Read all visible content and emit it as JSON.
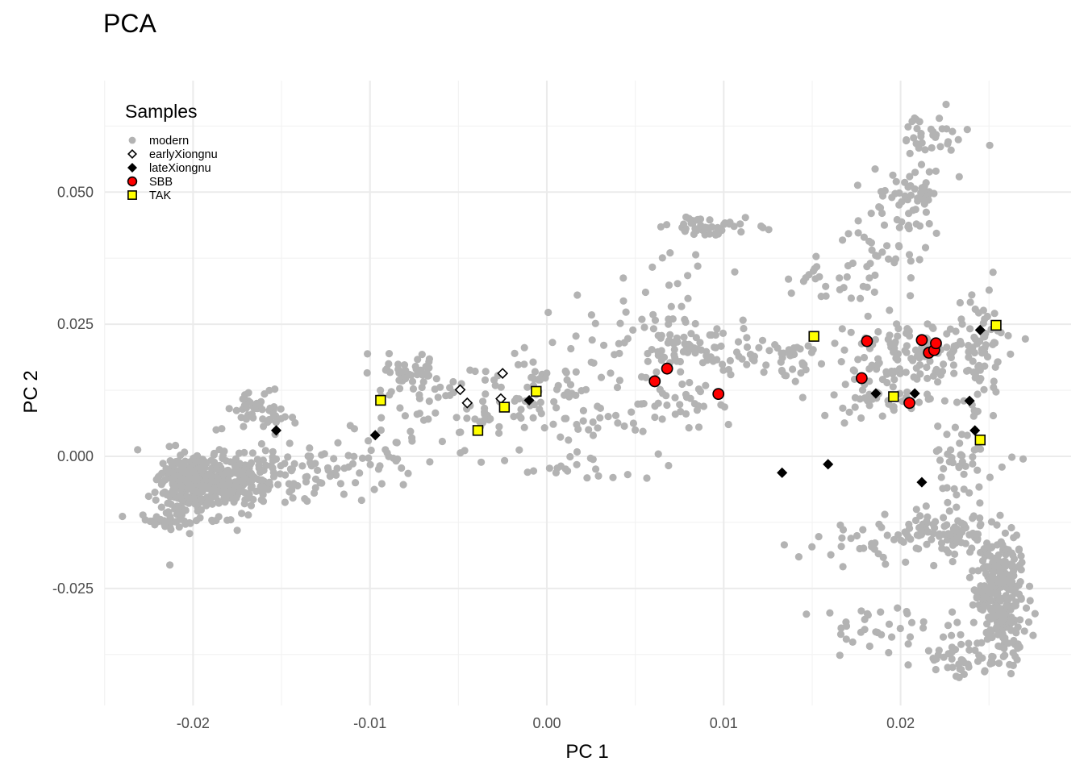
{
  "chart_data": {
    "type": "scatter",
    "title": "PCA",
    "xlabel": "PC 1",
    "ylabel": "PC 2",
    "xlim": [
      -0.025,
      0.0295
    ],
    "ylim": [
      -0.0475,
      0.0715
    ],
    "x_ticks": [
      -0.02,
      -0.01,
      0.0,
      0.01,
      0.02
    ],
    "x_tick_labels": [
      "-0.02",
      "-0.01",
      "0.00",
      "0.01",
      "0.02"
    ],
    "y_ticks": [
      0.05,
      0.025,
      0.0,
      -0.025
    ],
    "y_tick_labels": [
      "0.050",
      "0.025",
      "0.000",
      "-0.025"
    ],
    "grid": true,
    "legend": {
      "title": "Samples",
      "position": "top-left-inside",
      "entries": [
        {
          "label": "modern",
          "shape": "circle",
          "fill": "#b3b3b3",
          "stroke": "none"
        },
        {
          "label": "earlyXiongnu",
          "shape": "diamond",
          "fill": "#ffffff",
          "stroke": "#000000"
        },
        {
          "label": "lateXiongnu",
          "shape": "diamond",
          "fill": "#000000",
          "stroke": "#000000"
        },
        {
          "label": "SBB",
          "shape": "circle",
          "fill": "#ff0000",
          "stroke": "#000000"
        },
        {
          "label": "TAK",
          "shape": "square",
          "fill": "#ffff00",
          "stroke": "#000000"
        }
      ]
    },
    "modern_clusters": [
      {
        "cx": -0.0202,
        "cy": -0.0055,
        "sx": 0.0009,
        "sy": 0.0032,
        "n": 280
      },
      {
        "cx": -0.0172,
        "cy": -0.0045,
        "sx": 0.0014,
        "sy": 0.0028,
        "n": 180
      },
      {
        "cx": -0.0162,
        "cy": 0.0085,
        "sx": 0.0011,
        "sy": 0.0022,
        "n": 45
      },
      {
        "cx": -0.0212,
        "cy": -0.0122,
        "sx": 0.0008,
        "sy": 0.0008,
        "n": 25
      },
      {
        "cx": -0.0125,
        "cy": -0.003,
        "sx": 0.0018,
        "sy": 0.0028,
        "n": 45
      },
      {
        "cx": -0.0095,
        "cy": 0.0015,
        "sx": 0.0012,
        "sy": 0.0025,
        "n": 25
      },
      {
        "cx": -0.0075,
        "cy": 0.0155,
        "sx": 0.0014,
        "sy": 0.0022,
        "n": 45
      },
      {
        "cx": -0.0045,
        "cy": 0.0095,
        "sx": 0.0022,
        "sy": 0.0045,
        "n": 55
      },
      {
        "cx": -0.0005,
        "cy": 0.0135,
        "sx": 0.0018,
        "sy": 0.0035,
        "n": 45
      },
      {
        "cx": 0.002,
        "cy": 0.0075,
        "sx": 0.0028,
        "sy": 0.0045,
        "n": 50
      },
      {
        "cx": 0.002,
        "cy": -0.002,
        "sx": 0.0022,
        "sy": 0.0012,
        "n": 18
      },
      {
        "cx": 0.0045,
        "cy": 0.024,
        "sx": 0.0022,
        "sy": 0.0045,
        "n": 30
      },
      {
        "cx": 0.0075,
        "cy": 0.0205,
        "sx": 0.0011,
        "sy": 0.0025,
        "n": 55
      },
      {
        "cx": 0.0075,
        "cy": 0.0095,
        "sx": 0.0018,
        "sy": 0.0028,
        "n": 30
      },
      {
        "cx": 0.0095,
        "cy": 0.0435,
        "sx": 0.0013,
        "sy": 0.0008,
        "n": 45
      },
      {
        "cx": 0.0065,
        "cy": 0.036,
        "sx": 0.002,
        "sy": 0.0035,
        "n": 10
      },
      {
        "cx": 0.012,
        "cy": 0.0185,
        "sx": 0.0022,
        "sy": 0.0022,
        "n": 60
      },
      {
        "cx": 0.0165,
        "cy": 0.0325,
        "sx": 0.0018,
        "sy": 0.0032,
        "n": 30
      },
      {
        "cx": 0.0205,
        "cy": 0.0205,
        "sx": 0.0022,
        "sy": 0.0028,
        "n": 110
      },
      {
        "cx": 0.0195,
        "cy": 0.0115,
        "sx": 0.0018,
        "sy": 0.0022,
        "n": 60
      },
      {
        "cx": 0.0205,
        "cy": 0.0495,
        "sx": 0.0012,
        "sy": 0.0025,
        "n": 50
      },
      {
        "cx": 0.0215,
        "cy": 0.0605,
        "sx": 0.0013,
        "sy": 0.0022,
        "n": 35
      },
      {
        "cx": 0.0195,
        "cy": 0.0395,
        "sx": 0.0012,
        "sy": 0.0032,
        "n": 30
      },
      {
        "cx": 0.0245,
        "cy": 0.0195,
        "sx": 0.0007,
        "sy": 0.0065,
        "n": 60
      },
      {
        "cx": 0.0235,
        "cy": 0.0015,
        "sx": 0.0008,
        "sy": 0.0022,
        "n": 25
      },
      {
        "cx": 0.0225,
        "cy": -0.0145,
        "sx": 0.0015,
        "sy": 0.0022,
        "n": 90
      },
      {
        "cx": 0.0255,
        "cy": -0.0235,
        "sx": 0.0007,
        "sy": 0.0045,
        "n": 160
      },
      {
        "cx": 0.0258,
        "cy": -0.0315,
        "sx": 0.0007,
        "sy": 0.0035,
        "n": 100
      },
      {
        "cx": 0.0235,
        "cy": -0.038,
        "sx": 0.0012,
        "sy": 0.0022,
        "n": 45
      },
      {
        "cx": 0.0195,
        "cy": -0.0325,
        "sx": 0.0022,
        "sy": 0.0022,
        "n": 35
      },
      {
        "cx": 0.0185,
        "cy": -0.016,
        "sx": 0.0028,
        "sy": 0.0018,
        "n": 30
      },
      {
        "cx": 0.0235,
        "cy": -0.0055,
        "sx": 0.0009,
        "sy": 0.0025,
        "n": 20
      }
    ],
    "series": [
      {
        "name": "earlyXiongnu",
        "points": [
          [
            -0.0049,
            0.0126
          ],
          [
            -0.0045,
            0.0101
          ],
          [
            -0.0025,
            0.0157
          ],
          [
            -0.0026,
            0.0109
          ]
        ]
      },
      {
        "name": "lateXiongnu",
        "points": [
          [
            -0.0153,
            0.0049
          ],
          [
            -0.0097,
            0.004
          ],
          [
            -0.001,
            0.0106
          ],
          [
            0.0133,
            -0.0031
          ],
          [
            0.0159,
            -0.0015
          ],
          [
            0.0186,
            0.0119
          ],
          [
            0.0208,
            0.0119
          ],
          [
            0.0212,
            -0.0049
          ],
          [
            0.0239,
            0.0105
          ],
          [
            0.0242,
            0.0049
          ],
          [
            0.0245,
            0.0239
          ]
        ]
      },
      {
        "name": "SBB",
        "points": [
          [
            0.0061,
            0.0142
          ],
          [
            0.0068,
            0.0166
          ],
          [
            0.0097,
            0.0118
          ],
          [
            0.0178,
            0.0148
          ],
          [
            0.0181,
            0.0218
          ],
          [
            0.0205,
            0.0101
          ],
          [
            0.0212,
            0.022
          ],
          [
            0.0216,
            0.0196
          ],
          [
            0.0219,
            0.0201
          ],
          [
            0.022,
            0.0214
          ]
        ]
      },
      {
        "name": "TAK",
        "points": [
          [
            -0.0094,
            0.0106
          ],
          [
            -0.0039,
            0.0049
          ],
          [
            -0.0024,
            0.0093
          ],
          [
            -0.0006,
            0.0123
          ],
          [
            0.0151,
            0.0227
          ],
          [
            0.0196,
            0.0113
          ],
          [
            0.0245,
            0.0031
          ],
          [
            0.0254,
            0.0248
          ]
        ]
      }
    ]
  }
}
